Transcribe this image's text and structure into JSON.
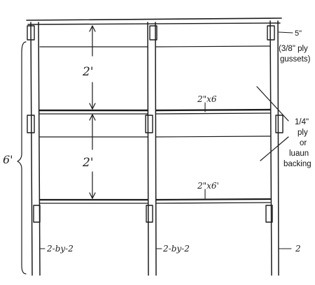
{
  "labels": {
    "gusset_size": "5\"",
    "gusset_note_line1": "(3/8\" ply",
    "gusset_note_line2": "gussets)",
    "upper_spacing": "2'",
    "lower_spacing": "2'",
    "upper_rail": "2\"x6",
    "lower_rail": "2\"x6'",
    "backing_line1": "1/4\"",
    "backing_line2": "ply",
    "backing_line3": "or",
    "backing_line4": "luaun",
    "backing_line5": "backing",
    "total_height": "6'",
    "stud_left": "2-by-2",
    "stud_middle": "2-by-2",
    "stud_right": "2"
  }
}
